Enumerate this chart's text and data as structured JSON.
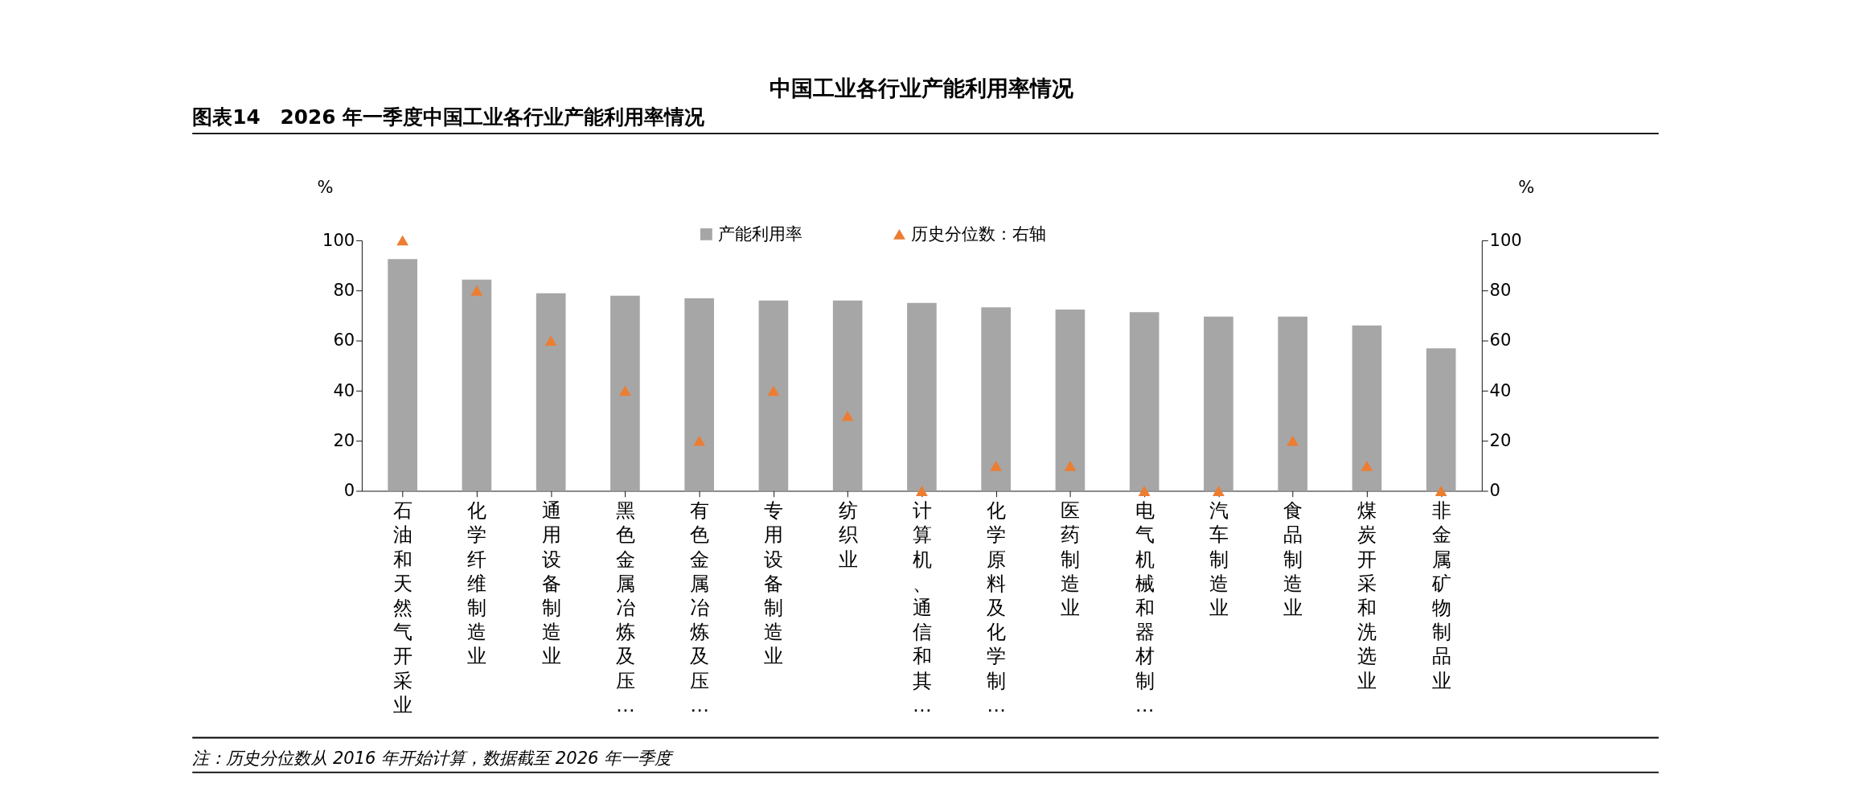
{
  "chart_data": {
    "type": "bar",
    "title": "图表14　2026 年一季度中国工业各行业产能利用率情况",
    "subtitle": "中国工业各行业产能利用率情况",
    "ylabel": "%",
    "y2label": "%",
    "categories": [
      "石油和天然气开采业",
      "化学纤维制造业",
      "通用设备制造业",
      "黑色金属冶炼及压…",
      "有色金属冶炼及压…",
      "专用设备制造业",
      "纺织业",
      "计算机、通信和其…",
      "化学原料及化学制…",
      "医药制造业",
      "电气机械和器材制…",
      "汽车制造业",
      "食品制造业",
      "煤炭开采和洗选业",
      "非金属矿物制品业"
    ],
    "series": [
      {
        "name": "产能利用率",
        "color": "#a6a6a6",
        "values": [
          92.5,
          84.3,
          78.9,
          77.9,
          76.9,
          76.0,
          76.0,
          75.0,
          73.3,
          72.4,
          71.3,
          69.6,
          69.6,
          66.0,
          56.9
        ]
      },
      {
        "name": "历史分位数：右轴",
        "type": "scatter",
        "axis": "y2",
        "color": "#ed7d31",
        "marker": "triangle",
        "values": [
          100,
          80,
          60,
          40,
          20,
          40,
          30,
          0,
          10,
          10,
          0,
          0,
          20,
          10,
          0
        ]
      }
    ],
    "ylim": [
      0,
      100
    ],
    "yticks": [
      0,
      20,
      40,
      60,
      80,
      100
    ],
    "y2lim": [
      0,
      100
    ],
    "y2ticks": [
      0,
      20,
      40,
      60,
      80,
      100
    ],
    "grid": false,
    "legend": "top",
    "annotations": [
      "注：历史分位数从 2016 年开始计算，数据截至 2026 年一季度"
    ]
  }
}
